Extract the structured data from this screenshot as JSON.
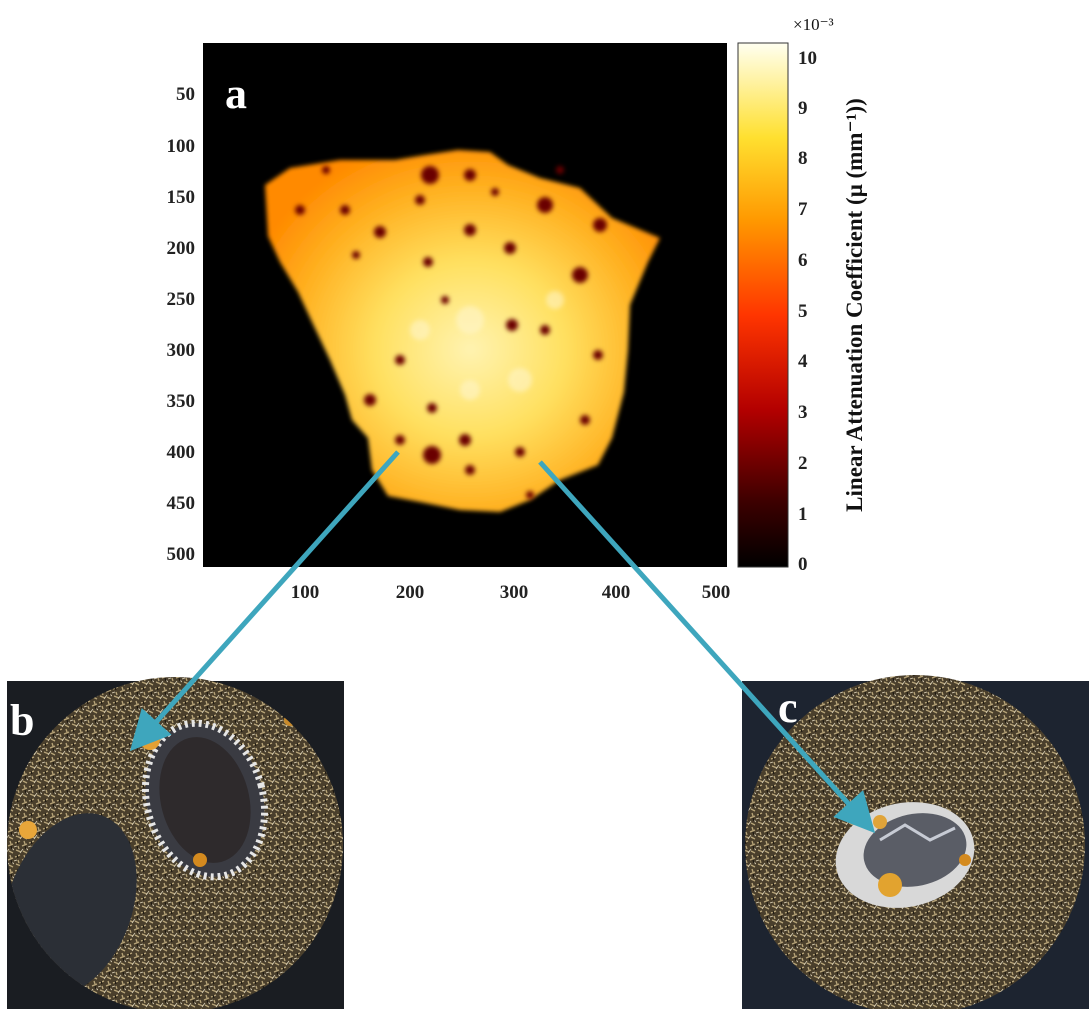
{
  "figure": {
    "panel_a": {
      "letter": "a",
      "x_ticks": [
        "100",
        "200",
        "300",
        "400",
        "500"
      ],
      "y_ticks": [
        "50",
        "100",
        "150",
        "200",
        "250",
        "300",
        "350",
        "400",
        "450",
        "500"
      ],
      "colorbar": {
        "label": "Linear Attenuation Coefficient (μ (mm⁻¹))",
        "exponent": "×10⁻³",
        "ticks": [
          "0",
          "1",
          "2",
          "3",
          "4",
          "5",
          "6",
          "7",
          "8",
          "9",
          "10"
        ],
        "colormap": [
          "#000000",
          "#5a0000",
          "#c00000",
          "#ff3a00",
          "#ff9a00",
          "#ffe23a",
          "#ffffe8"
        ]
      }
    },
    "panel_b": {
      "letter": "b"
    },
    "panel_c": {
      "letter": "c"
    },
    "arrow_color": "#3ea6bd"
  }
}
